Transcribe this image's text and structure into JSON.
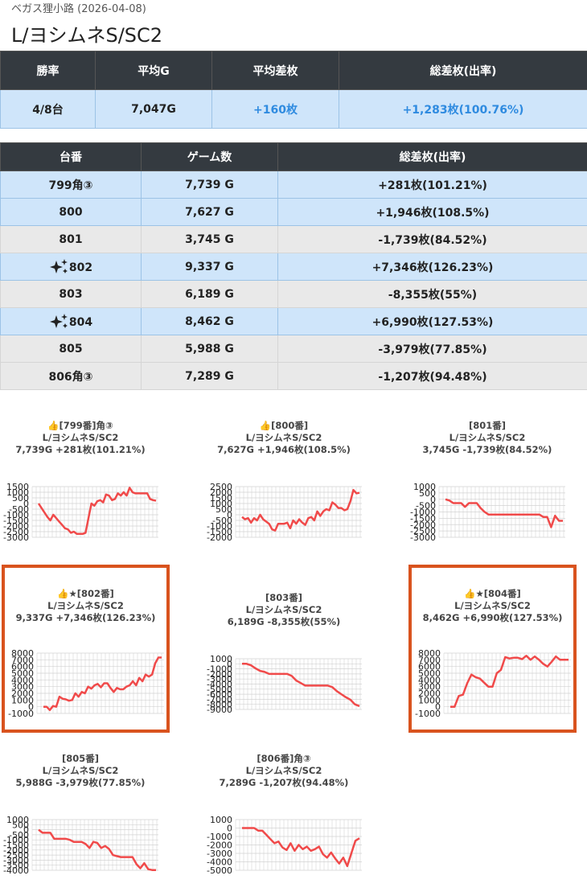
{
  "header": {
    "store_line": "ベガス狸小路 (2026-04-08)",
    "title": "L/ヨシムネS/SC2"
  },
  "summary": {
    "headers": [
      "勝率",
      "平均G",
      "平均差枚",
      "総差枚(出率)"
    ],
    "row": [
      "4/8台",
      "7,047G",
      "+160枚",
      "+1,283枚(100.76%)"
    ]
  },
  "machines": {
    "headers": [
      "台番",
      "ゲーム数",
      "総差枚(出率)"
    ],
    "rows": [
      {
        "no": "799角③",
        "games": "7,739 G",
        "total": "+281枚(101.21%)",
        "positive": true,
        "star": false
      },
      {
        "no": "800",
        "games": "7,627 G",
        "total": "+1,946枚(108.5%)",
        "positive": true,
        "star": false
      },
      {
        "no": "801",
        "games": "3,745 G",
        "total": "-1,739枚(84.52%)",
        "positive": false,
        "star": false
      },
      {
        "no": "802",
        "games": "9,337 G",
        "total": "+7,346枚(126.23%)",
        "positive": true,
        "star": true
      },
      {
        "no": "803",
        "games": "6,189 G",
        "total": "-8,355枚(55%)",
        "positive": false,
        "star": false
      },
      {
        "no": "804",
        "games": "8,462 G",
        "total": "+6,990枚(127.53%)",
        "positive": true,
        "star": true
      },
      {
        "no": "805",
        "games": "5,988 G",
        "total": "-3,979枚(77.85%)",
        "positive": false,
        "star": false
      },
      {
        "no": "806角③",
        "games": "7,289 G",
        "total": "-1,207枚(94.48%)",
        "positive": false,
        "star": false
      }
    ]
  },
  "chart_data": [
    {
      "type": "line",
      "title_lines": [
        "👍[799番]角③",
        "L/ヨシムネS/SC2",
        "7,739G +281枚(101.21%)"
      ],
      "yticks": [
        1500,
        1000,
        500,
        0,
        -500,
        -1000,
        -1500,
        -2000,
        -2500,
        -3000
      ],
      "ylim": [
        -3000,
        1500
      ],
      "series": [
        {
          "values": [
            0,
            -400,
            -800,
            -1200,
            -1500,
            -1000,
            -1300,
            -1600,
            -1900,
            -2200,
            -2300,
            -2600,
            -2500,
            -2700,
            -2700,
            -2700,
            -2600,
            -1300,
            0,
            -200,
            200,
            300,
            100,
            800,
            700,
            300,
            400,
            900,
            700,
            1000,
            700,
            1400,
            1000,
            900,
            900,
            900,
            900,
            900,
            400,
            300,
            250
          ]
        }
      ]
    },
    {
      "type": "line",
      "title_lines": [
        "👍[800番]",
        "L/ヨシムネS/SC2",
        "7,627G +1,946枚(108.5%)"
      ],
      "yticks": [
        2500,
        2000,
        1500,
        1000,
        500,
        0,
        -500,
        -1000,
        -1500,
        -2000
      ],
      "ylim": [
        -2000,
        2500
      ],
      "series": [
        {
          "values": [
            -200,
            -400,
            -300,
            -700,
            -300,
            -500,
            0,
            -400,
            -600,
            -800,
            -1300,
            -1400,
            -800,
            -800,
            -800,
            -700,
            -1200,
            -500,
            -800,
            -400,
            -700,
            -900,
            -300,
            -200,
            -500,
            300,
            -100,
            300,
            500,
            400,
            1100,
            900,
            600,
            600,
            400,
            500,
            1200,
            2200,
            1900,
            1950
          ]
        }
      ]
    },
    {
      "type": "line",
      "title_lines": [
        "[801番]",
        "L/ヨシムネS/SC2",
        "3,745G -1,739枚(84.52%)"
      ],
      "yticks": [
        1000,
        500,
        0,
        -500,
        -1000,
        -1500,
        -2000,
        -2500,
        -3000
      ],
      "ylim": [
        -3000,
        1000
      ],
      "series": [
        {
          "values": [
            0,
            -100,
            -300,
            -300,
            -300,
            -600,
            -300,
            -300,
            -300,
            -700,
            -1000,
            -1200,
            -1200,
            -1200,
            -1200,
            -1200,
            -1200,
            -1200,
            -1200,
            -1200,
            -1200,
            -1200,
            -1200,
            -1200,
            -1200,
            -1400,
            -1400,
            -2200,
            -1300,
            -1700,
            -1700
          ]
        }
      ]
    },
    {
      "type": "line",
      "title_lines": [
        "👍★[802番]",
        "L/ヨシムネS/SC2",
        "9,337G +7,346枚(126.23%)"
      ],
      "yticks": [
        8000,
        7000,
        6000,
        5000,
        4000,
        3000,
        2000,
        1000,
        0,
        -1000
      ],
      "ylim": [
        -1000,
        8000
      ],
      "series": [
        {
          "values": [
            0,
            0,
            -500,
            100,
            0,
            1500,
            1200,
            1100,
            900,
            1000,
            2000,
            1500,
            2200,
            2000,
            3000,
            2700,
            3200,
            3400,
            2900,
            3500,
            3500,
            2800,
            2200,
            2800,
            2600,
            2600,
            3000,
            3200,
            3800,
            3200,
            4300,
            3800,
            4800,
            4500,
            4800,
            6500,
            7346,
            7346
          ]
        }
      ]
    },
    {
      "type": "line",
      "title_lines": [
        "[803番]",
        "L/ヨシムネS/SC2",
        "6,189G -8,355枚(55%)"
      ],
      "yticks": [
        1000,
        0,
        -1000,
        -2000,
        -3000,
        -4000,
        -5000,
        -6000,
        -7000,
        -8000,
        -9000
      ],
      "ylim": [
        -9000,
        1000
      ],
      "series": [
        {
          "values": [
            0,
            0,
            -300,
            -900,
            -1400,
            -1600,
            -2000,
            -2000,
            -2000,
            -2000,
            -2000,
            -2400,
            -3300,
            -3800,
            -4300,
            -4300,
            -4300,
            -4300,
            -4300,
            -4300,
            -4600,
            -5400,
            -6000,
            -6600,
            -7100,
            -8000,
            -8355
          ]
        }
      ]
    },
    {
      "type": "line",
      "title_lines": [
        "👍★[804番]",
        "L/ヨシムネS/SC2",
        "8,462G +6,990枚(127.53%)"
      ],
      "yticks": [
        8000,
        7000,
        6000,
        5000,
        4000,
        3000,
        2000,
        1000,
        0,
        -1000
      ],
      "ylim": [
        -1000,
        8000
      ],
      "series": [
        {
          "values": [
            0,
            0,
            1600,
            1800,
            3500,
            4800,
            4400,
            4200,
            3600,
            3000,
            3000,
            5000,
            5500,
            7400,
            7200,
            7300,
            7300,
            7100,
            7600,
            7000,
            7500,
            7000,
            6400,
            6000,
            6700,
            7500,
            7000,
            7000,
            7000
          ]
        }
      ]
    },
    {
      "type": "line",
      "title_lines": [
        "[805番]",
        "L/ヨシムネS/SC2",
        "5,988G -3,979枚(77.85%)"
      ],
      "yticks": [
        1000,
        500,
        0,
        -500,
        -1000,
        -1500,
        -2000,
        -2500,
        -3000,
        -3500,
        -4000
      ],
      "ylim": [
        -4000,
        1000
      ],
      "series": [
        {
          "values": [
            0,
            -300,
            -300,
            -300,
            -900,
            -900,
            -900,
            -900,
            -1000,
            -1200,
            -1200,
            -1200,
            -1400,
            -1800,
            -1200,
            -1300,
            -1800,
            -1600,
            -1900,
            -2500,
            -2600,
            -2700,
            -2700,
            -2700,
            -2700,
            -3400,
            -3800,
            -3300,
            -3900,
            -3979,
            -3979
          ]
        }
      ]
    },
    {
      "type": "line",
      "title_lines": [
        "[806番]角③",
        "L/ヨシムネS/SC2",
        "7,289G -1,207枚(94.48%)"
      ],
      "yticks": [
        1000,
        0,
        -1000,
        -2000,
        -3000,
        -4000,
        -5000
      ],
      "ylim": [
        -5000,
        1000
      ],
      "series": [
        {
          "values": [
            0,
            0,
            0,
            0,
            -300,
            -300,
            -800,
            -1300,
            -1800,
            -1600,
            -2300,
            -2600,
            -1800,
            -2700,
            -2000,
            -2500,
            -2200,
            -2700,
            -2500,
            -2200,
            -3100,
            -3500,
            -2900,
            -3600,
            -4200,
            -3500,
            -4500,
            -3000,
            -1500,
            -1207
          ]
        }
      ]
    }
  ],
  "colors": {
    "line": "#f04a4a",
    "grid": "#d3d3d3",
    "header_bg": "#343a40",
    "plus_row": "#cfe5fa",
    "minus_row": "#e9e9e9",
    "highlight_border": "#d9531e",
    "link_blue": "#2f8be0"
  }
}
